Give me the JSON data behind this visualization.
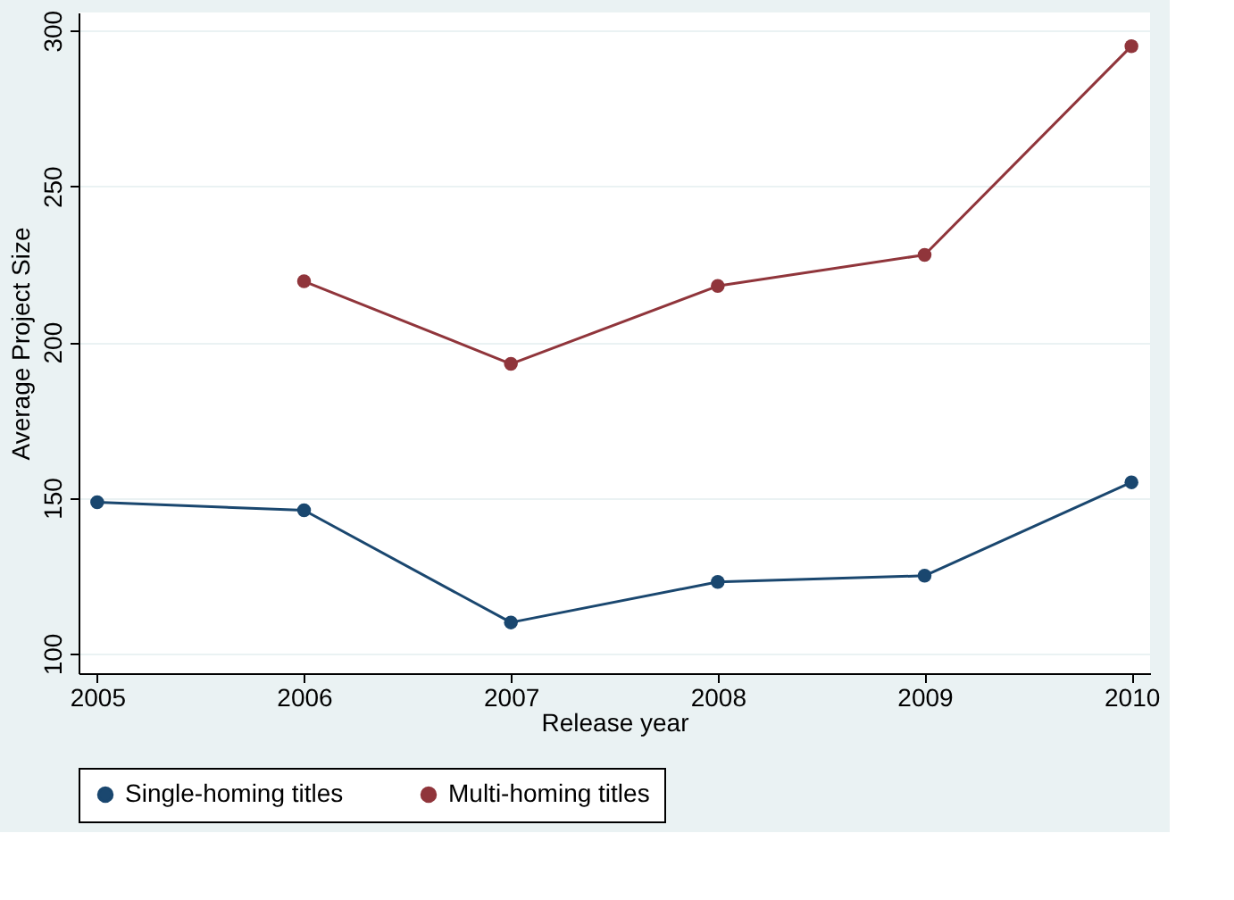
{
  "chart_data": {
    "type": "line",
    "xlabel": "Release year",
    "ylabel": "Average Project Size",
    "x": [
      2005,
      2006,
      2007,
      2008,
      2009,
      2010
    ],
    "series": [
      {
        "name": "Single-homing titles",
        "color": "#1a476f",
        "values": [
          148.6,
          146,
          110,
          123,
          125,
          155
        ]
      },
      {
        "name": "Multi-homing titles",
        "color": "#90353b",
        "values": [
          null,
          219.5,
          193,
          218,
          228,
          295
        ]
      }
    ],
    "xlim": [
      2004.91,
      2010.09
    ],
    "xticks": [
      2005,
      2006,
      2007,
      2008,
      2009,
      2010
    ],
    "ylim": [
      93.7,
      305.8
    ],
    "yticks": [
      100,
      150,
      200,
      250,
      300
    ],
    "grid": "y",
    "legend": "bottom",
    "marker": "circle",
    "line_style": "solid"
  }
}
